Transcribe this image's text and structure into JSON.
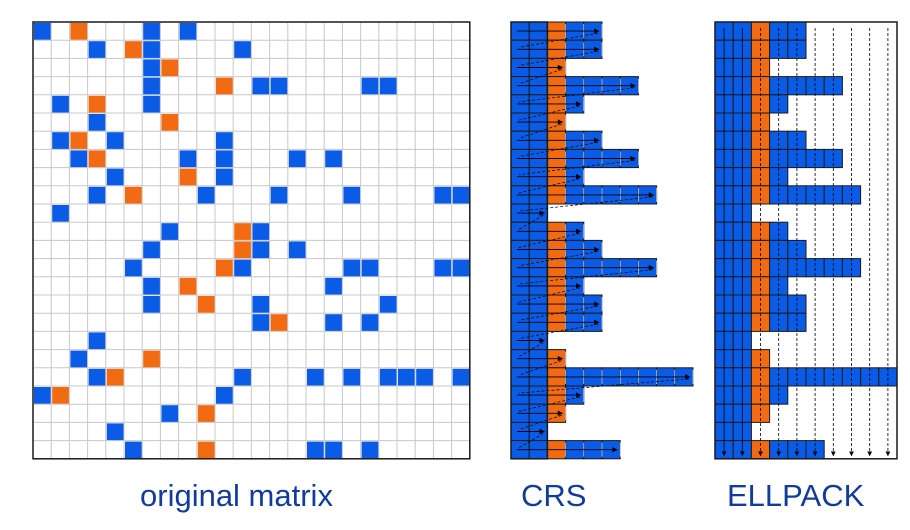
{
  "captions": {
    "matrix": "original matrix",
    "crs": "CRS",
    "ellpack": "ELLPACK"
  },
  "colors": {
    "nonzero": "#0a5ce6",
    "diagonal": "#f26a12",
    "grid": "#c8c8c8",
    "border": "#1a1a1a",
    "caption": "#123c9c"
  },
  "matrix": {
    "size": 24,
    "rows": [
      {
        "b": [
          0,
          6,
          8
        ],
        "o": [
          2
        ]
      },
      {
        "b": [
          3,
          6,
          11
        ],
        "o": [
          5
        ]
      },
      {
        "b": [
          6
        ],
        "o": [
          7
        ]
      },
      {
        "b": [
          6,
          12,
          13,
          18,
          19
        ],
        "o": [
          10
        ]
      },
      {
        "b": [
          1,
          6
        ],
        "o": [
          3
        ]
      },
      {
        "b": [
          3
        ],
        "o": [
          7
        ]
      },
      {
        "b": [
          1,
          4,
          10
        ],
        "o": [
          2
        ]
      },
      {
        "b": [
          2,
          8,
          10,
          14,
          16
        ],
        "o": [
          3
        ]
      },
      {
        "b": [
          4,
          10
        ],
        "o": [
          8
        ]
      },
      {
        "b": [
          3,
          9,
          13,
          17,
          22,
          23
        ],
        "o": [
          5
        ]
      },
      {
        "b": [
          1
        ],
        "o": []
      },
      {
        "b": [
          7,
          12
        ],
        "o": [
          11
        ]
      },
      {
        "b": [
          6,
          12,
          14
        ],
        "o": [
          11
        ]
      },
      {
        "b": [
          5,
          11,
          17,
          18,
          22,
          23
        ],
        "o": [
          10
        ]
      },
      {
        "b": [
          6,
          16
        ],
        "o": [
          8
        ]
      },
      {
        "b": [
          6,
          12,
          19
        ],
        "o": [
          9
        ]
      },
      {
        "b": [
          12,
          16,
          18
        ],
        "o": [
          13
        ]
      },
      {
        "b": [
          3
        ],
        "o": []
      },
      {
        "b": [
          2
        ],
        "o": [
          6
        ]
      },
      {
        "b": [
          3,
          11,
          15,
          17,
          19,
          20,
          21,
          23
        ],
        "o": [
          4
        ]
      },
      {
        "b": [
          0,
          10
        ],
        "o": [
          1
        ]
      },
      {
        "b": [
          7
        ],
        "o": [
          9
        ]
      },
      {
        "b": [
          4
        ],
        "o": []
      },
      {
        "b": [
          5,
          15,
          16,
          18
        ],
        "o": [
          9
        ]
      }
    ]
  }
}
